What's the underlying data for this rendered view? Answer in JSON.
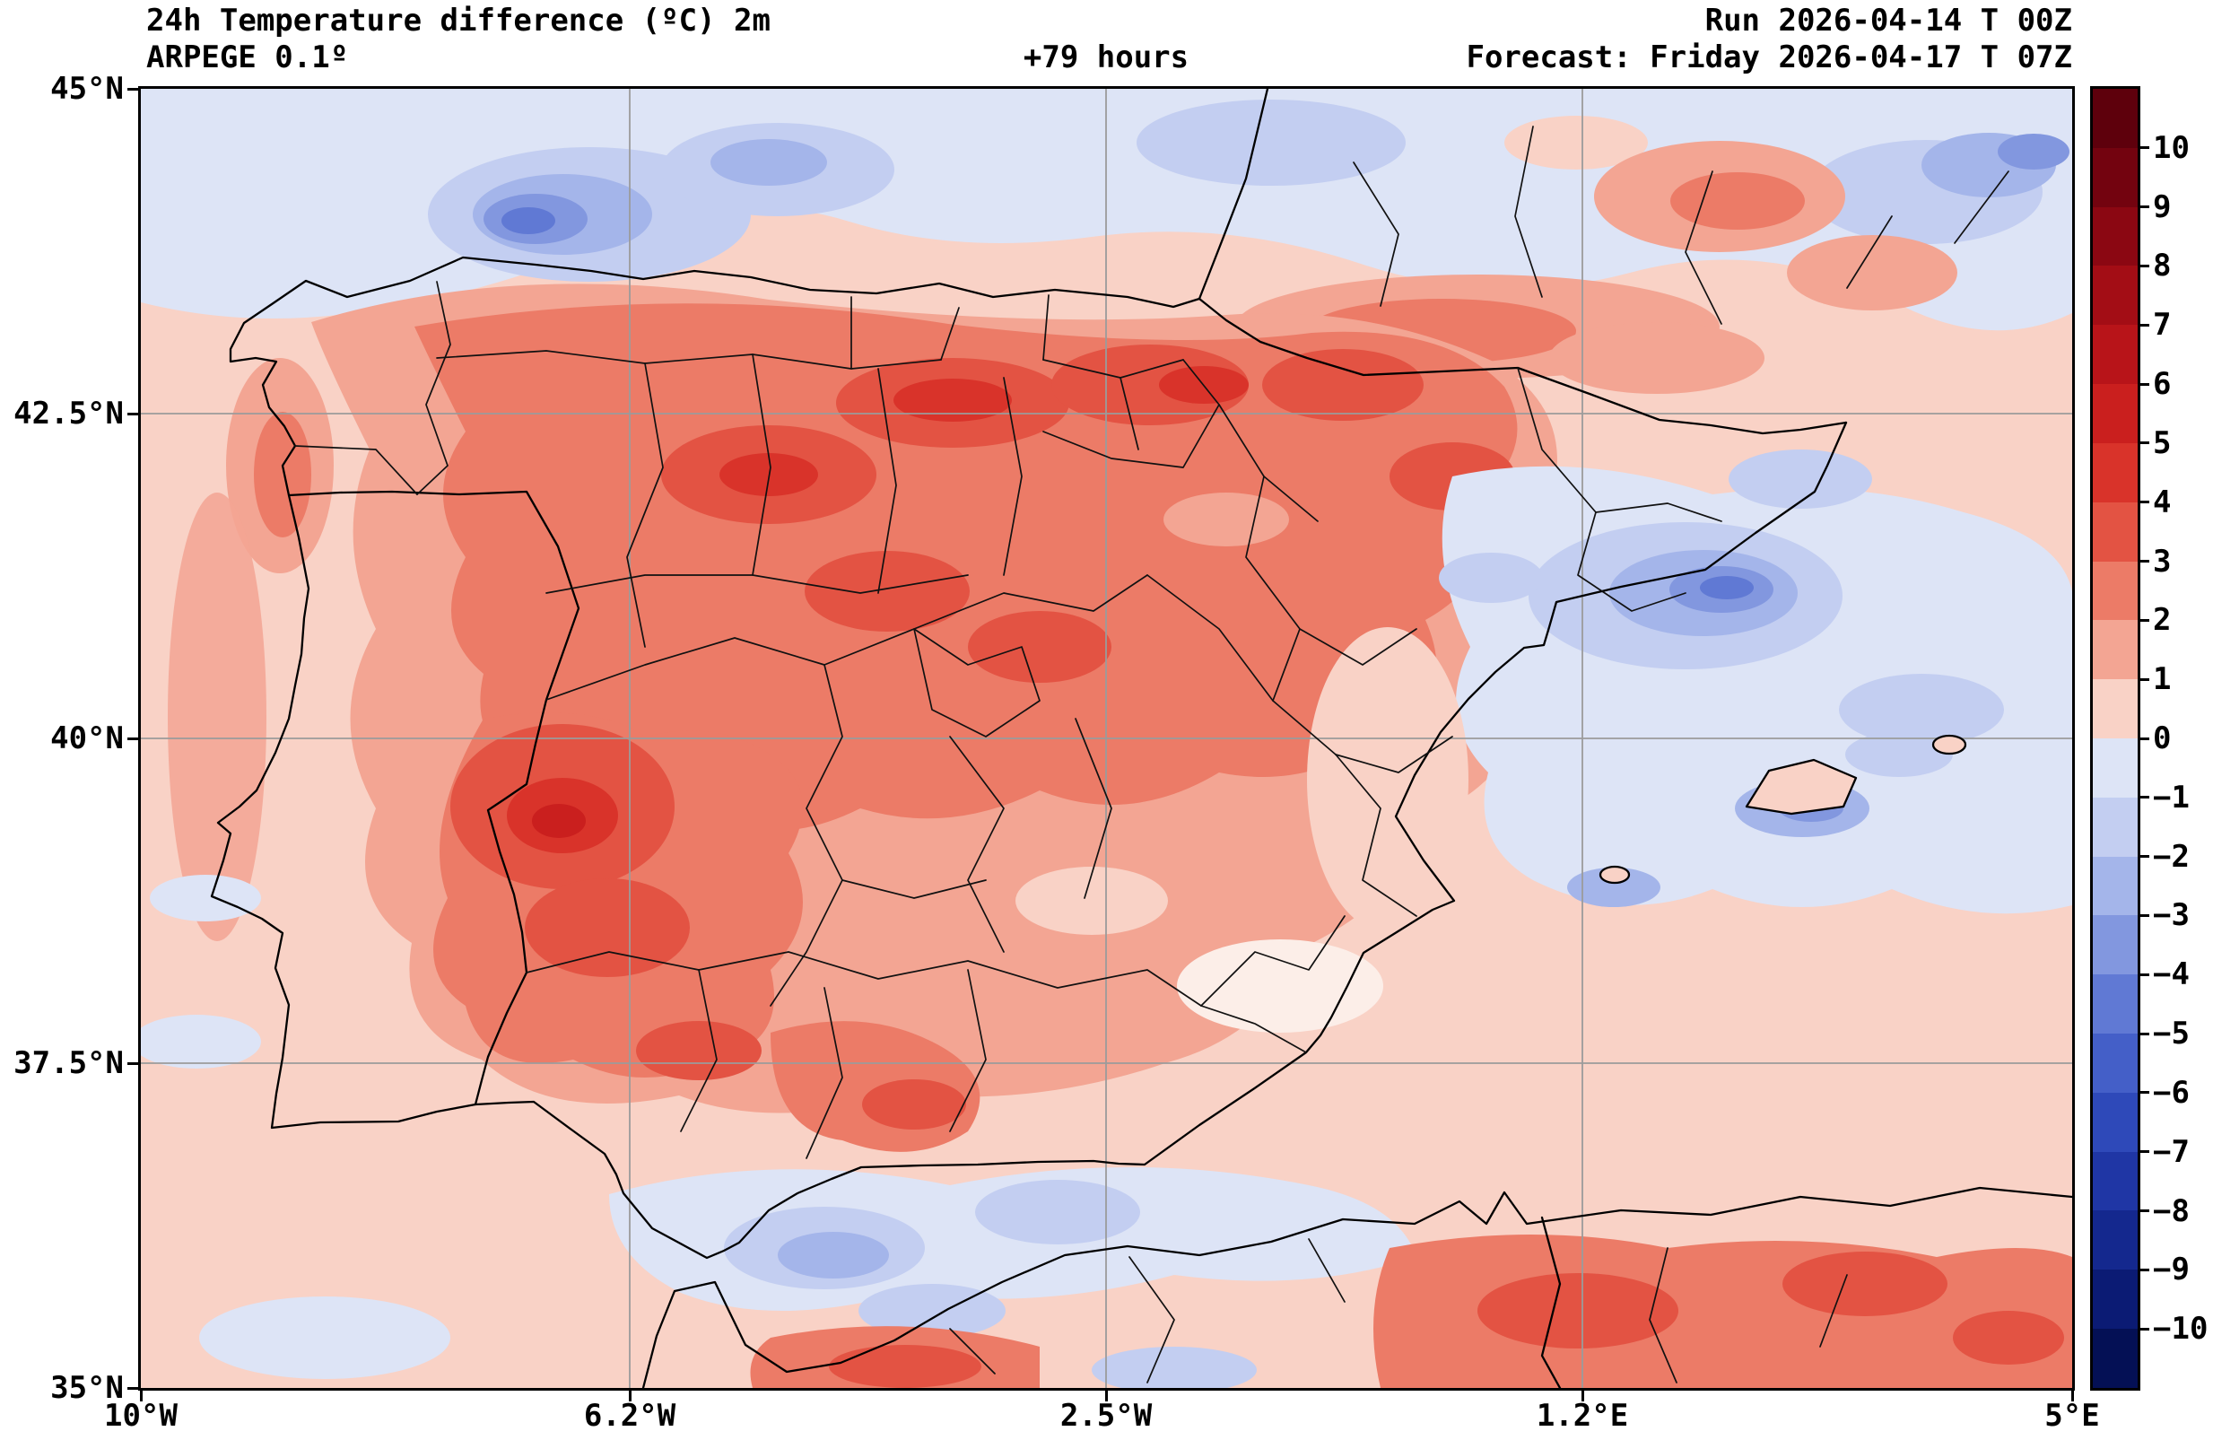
{
  "header": {
    "title": "24h Temperature difference (ºC) 2m",
    "model": "ARPEGE 0.1º",
    "lead": "+79 hours",
    "run": "Run 2026-04-14 T 00Z",
    "forecast": "Forecast: Friday 2026-04-17 T 07Z"
  },
  "axes": {
    "y_tick_labels": [
      "45°N",
      "42.5°N",
      "40°N",
      "37.5°N",
      "35°N"
    ],
    "x_tick_labels": [
      "10°W",
      "6.2°W",
      "2.5°W",
      "1.2°E",
      "5°E"
    ]
  },
  "colorbar": {
    "tick_labels": [
      "10",
      "9",
      "8",
      "7",
      "6",
      "5",
      "4",
      "3",
      "2",
      "1",
      "0",
      "−1",
      "−2",
      "−3",
      "−4",
      "−5",
      "−6",
      "−7",
      "−8",
      "−9",
      "−10"
    ],
    "segment_colors_top_to_bottom": [
      "#5e000c",
      "#73030f",
      "#8b0712",
      "#a30d15",
      "#b81419",
      "#ca1f1e",
      "#d9332a",
      "#e35343",
      "#ec7b67",
      "#f3a593",
      "#f9d2c6",
      "#dde4f6",
      "#c3cef1",
      "#a4b5ea",
      "#8297df",
      "#6079d4",
      "#445fc8",
      "#2e49b9",
      "#1f36a5",
      "#14288e",
      "#0b1b74",
      "#041055"
    ]
  },
  "chart_data": {
    "type": "filled_contour_map",
    "title": "24h Temperature difference (ºC) 2m",
    "model": "ARPEGE 0.1º",
    "lead_time_hours": 79,
    "run": "2026-04-14 T 00Z",
    "valid": "Friday 2026-04-17 T 07Z",
    "units": "ºC",
    "lon_tick_labels": [
      "10°W",
      "6.2°W",
      "2.5°W",
      "1.2°E",
      "5°E"
    ],
    "lat_tick_labels": [
      "45°N",
      "42.5°N",
      "40°N",
      "37.5°N",
      "35°N"
    ],
    "colorbar_range": [
      -10,
      10
    ],
    "contour_levels_degC": [
      -10,
      -9,
      -8,
      -7,
      -6,
      -5,
      -4,
      -3,
      -2,
      -1,
      0,
      1,
      2,
      3,
      4,
      5,
      6,
      7,
      8,
      9,
      10
    ],
    "grid": true,
    "legend_position": "right-colorbar",
    "regional_estimates_degC": [
      {
        "region": "NW Atlantic off Galicia",
        "value": -4
      },
      {
        "region": "Bay of Biscay / northern coastal strip",
        "value": -1
      },
      {
        "region": "Duero valley / north-central plateau",
        "value": 5
      },
      {
        "region": "Extremadura warm core",
        "value": 6
      },
      {
        "region": "Central Iberian plateau (broad)",
        "value": 3
      },
      {
        "region": "Ebro valley / La Rioja",
        "value": 4
      },
      {
        "region": "Mediterranean off Tarragona-Valencia",
        "value": -4
      },
      {
        "region": "Balearic Sea",
        "value": -2
      },
      {
        "region": "Alboran Sea",
        "value": -1
      },
      {
        "region": "SE Spain coast (Murcia-Almeria)",
        "value": 1
      },
      {
        "region": "North Africa interior (Rif/Atlas)",
        "value": 4
      },
      {
        "region": "SW France patches",
        "value": 2
      }
    ]
  }
}
